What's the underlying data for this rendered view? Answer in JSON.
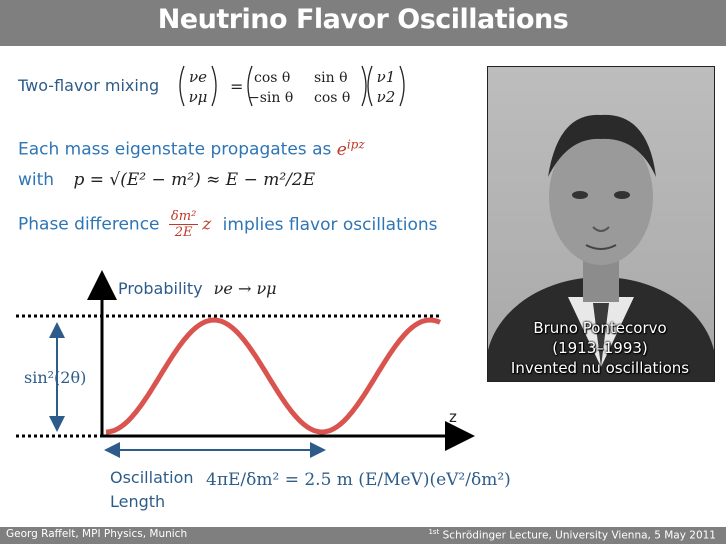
{
  "title": "Neutrino Flavor Oscillations",
  "mixing": {
    "label": "Two-flavor mixing",
    "nu_e": "νe",
    "nu_mu": "νμ",
    "cos": "cos θ",
    "sin": "sin θ",
    "msin": "−sin θ",
    "nu_1": "ν1",
    "nu_2": "ν2"
  },
  "propagation": {
    "text": "Each mass eigenstate propagates as",
    "phase": "e",
    "phase_exp": "ipz",
    "with_label": "with",
    "momentum_formula": "p = √(E² − m²) ≈ E − m²/2E",
    "phase_diff_label": "Phase difference",
    "phase_num": "δm²",
    "phase_den": "2E",
    "phase_z": "z",
    "implies": "implies flavor oscillations"
  },
  "plot": {
    "prob_label": "Probability",
    "prob_transition": "νe → νμ",
    "amplitude_label": "sin²(2θ)",
    "z_label": "z",
    "osc_label_1": "Oscillation",
    "osc_label_2": "Length",
    "osc_formula": "4πE/δm² = 2.5 m (E/MeV)(eV²/δm²)"
  },
  "photo": {
    "caption_name": "Bruno Pontecorvo",
    "caption_years": "(1913–1993)",
    "caption_note": "Invented nu oscillations"
  },
  "footer": {
    "left": "Georg Raffelt, MPI Physics, Munich",
    "right_sup": "1st",
    "right": "Schrödinger Lecture, University Vienna, 5 May 2011"
  },
  "colors": {
    "curve": "#d9534f",
    "accent": "#2e75b6",
    "title_bar": "#7f7f7f"
  }
}
